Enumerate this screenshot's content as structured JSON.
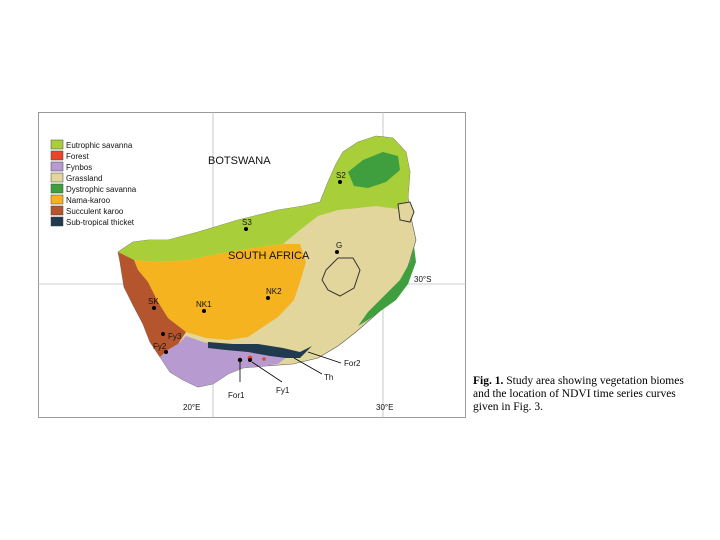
{
  "legend": {
    "items": [
      {
        "label": "Eutrophic savanna",
        "color": "#a8cf3a"
      },
      {
        "label": "Forest",
        "color": "#e8452a"
      },
      {
        "label": "Fynbos",
        "color": "#b79ad0"
      },
      {
        "label": "Grassland",
        "color": "#e2d69c"
      },
      {
        "label": "Dystrophic savanna",
        "color": "#3f9f3f"
      },
      {
        "label": "Nama-karoo",
        "color": "#f5b41f"
      },
      {
        "label": "Succulent karoo",
        "color": "#b5552d"
      },
      {
        "label": "Sub-tropical thicket",
        "color": "#203a4e"
      }
    ]
  },
  "map": {
    "country_labels": {
      "botswana": "BOTSWANA",
      "south_africa": "SOUTH AFRICA"
    },
    "graticule": {
      "lat_label": "30°S",
      "lon_label_1": "20°E",
      "lon_label_2": "30°E"
    },
    "sites": [
      "S2",
      "S3",
      "G",
      "SK",
      "NK1",
      "NK2",
      "Fy3",
      "Fy2",
      "For2",
      "Th",
      "For1",
      "Fy1"
    ]
  },
  "caption": {
    "label": "Fig. 1.",
    "text": "Study area showing vegetation biomes and the location of NDVI time series curves given in Fig. 3."
  }
}
